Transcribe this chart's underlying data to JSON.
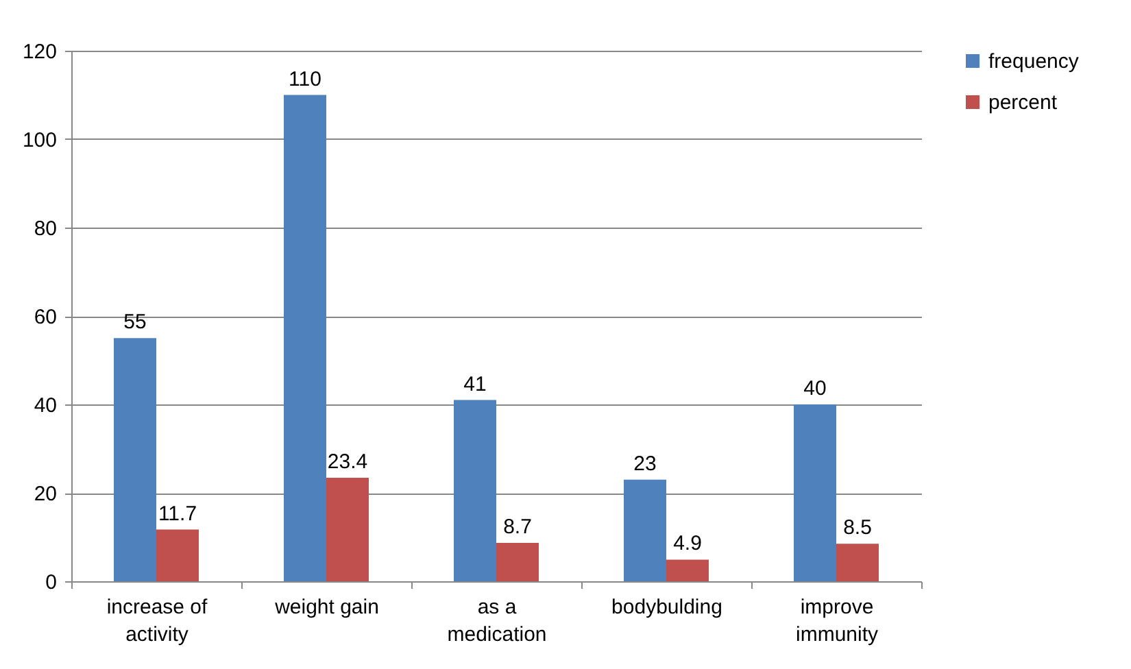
{
  "chart_data": {
    "type": "bar",
    "categories": [
      "increase of activity",
      "weight gain",
      "as a medication",
      "bodybulding",
      "improve immunity"
    ],
    "series": [
      {
        "name": "frequency",
        "color": "#4f81bd",
        "values": [
          55,
          110,
          41,
          23,
          40
        ]
      },
      {
        "name": "percent",
        "color": "#c0504d",
        "values": [
          11.7,
          23.4,
          8.7,
          4.9,
          8.5
        ]
      }
    ],
    "ylim": [
      0,
      120
    ],
    "yticks": [
      0,
      20,
      40,
      60,
      80,
      100,
      120
    ],
    "grid": "y",
    "legend": "right",
    "data_labels": true
  }
}
